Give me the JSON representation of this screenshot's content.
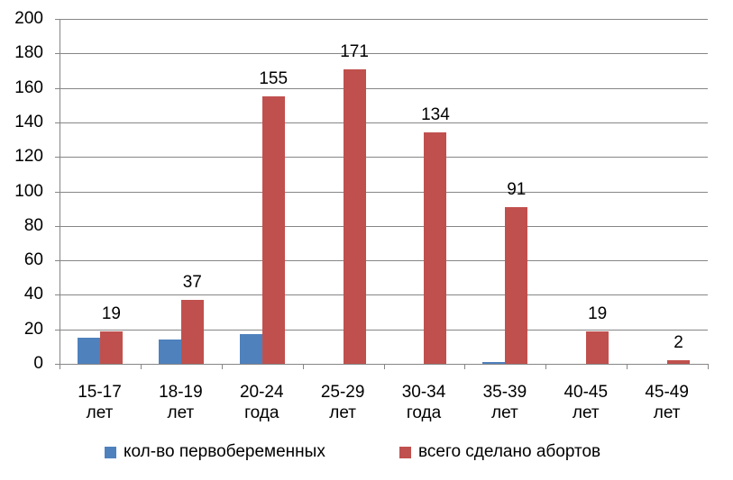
{
  "chart_data": {
    "type": "bar",
    "title": "",
    "xlabel": "",
    "ylabel": "",
    "ylim": [
      0,
      200
    ],
    "yticks": [
      0,
      20,
      40,
      60,
      80,
      100,
      120,
      140,
      160,
      180,
      200
    ],
    "grid": true,
    "legend_position": "bottom",
    "categories": [
      "15-17 лет",
      "18-19 лет",
      "20-24 года",
      "25-29 лет",
      "30-34 года",
      "35-39 лет",
      "40-45 лет",
      "45-49 лет"
    ],
    "category_lines": [
      [
        "15-17",
        "лет"
      ],
      [
        "18-19",
        "лет"
      ],
      [
        "20-24",
        "года"
      ],
      [
        "25-29",
        "лет"
      ],
      [
        "30-34",
        "года"
      ],
      [
        "35-39",
        "лет"
      ],
      [
        "40-45",
        "лет"
      ],
      [
        "45-49",
        "лет"
      ]
    ],
    "series": [
      {
        "name": "кол-во первобеременных",
        "color": "#4F81BD",
        "values": [
          15,
          14,
          17,
          0,
          0,
          1,
          0,
          0
        ],
        "data_labels": false
      },
      {
        "name": "всего сделано абортов",
        "color": "#C0504D",
        "values": [
          19,
          37,
          155,
          171,
          134,
          91,
          19,
          2
        ],
        "data_labels": true
      }
    ]
  }
}
